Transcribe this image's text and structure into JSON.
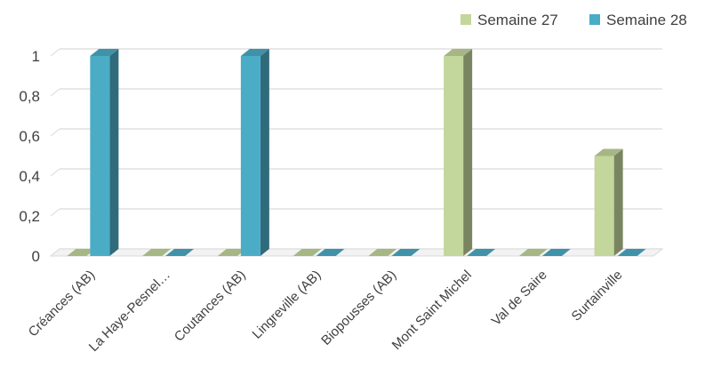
{
  "chart_data": {
    "type": "bar",
    "title": "",
    "xlabel": "",
    "ylabel": "",
    "categories": [
      "Créances (AB)",
      "La Haye-Pesnel…",
      "Coutances (AB)",
      "Lingreville (AB)",
      "Biopousses (AB)",
      "Mont Saint Michel",
      "Val de Saire",
      "Surtainville"
    ],
    "series": [
      {
        "name": "Semaine 27",
        "values": [
          0,
          0,
          0,
          0,
          0,
          1,
          0,
          0.5
        ],
        "color": "#C3D69B"
      },
      {
        "name": "Semaine 28",
        "values": [
          1,
          0,
          1,
          0,
          0,
          0,
          0,
          0
        ],
        "color": "#4BACC6"
      }
    ],
    "yticks": [
      "0",
      "0,2",
      "0,4",
      "0,6",
      "0,8",
      "1"
    ],
    "ylim": [
      0,
      1
    ],
    "grid": true,
    "legend_position": "top-right",
    "three_d": true
  }
}
